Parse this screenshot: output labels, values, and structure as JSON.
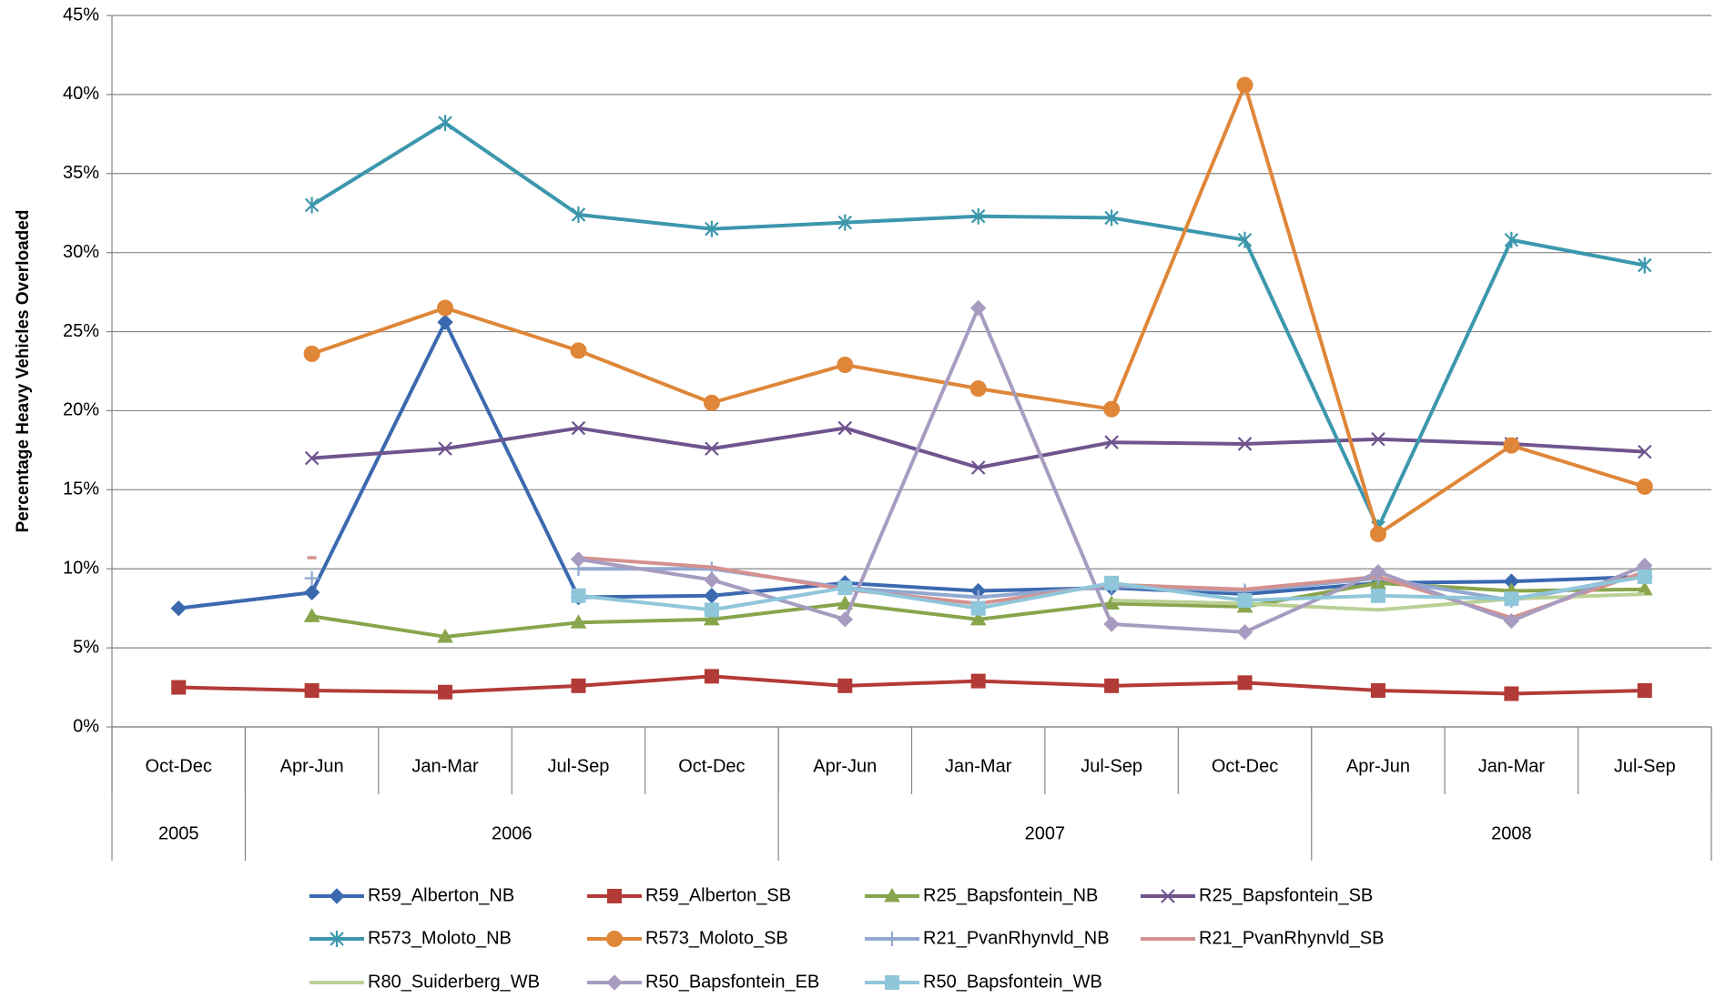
{
  "chart_data": {
    "type": "line",
    "y_label": "Percentage Heavy Vehicles Overloaded",
    "categories": [
      "Oct-Dec",
      "Apr-Jun",
      "Jan-Mar",
      "Jul-Sep",
      "Oct-Dec",
      "Apr-Jun",
      "Jan-Mar",
      "Jul-Sep",
      "Oct-Dec",
      "Apr-Jun",
      "Jan-Mar",
      "Jul-Sep"
    ],
    "year_groups": [
      {
        "label": "2005",
        "count": 1
      },
      {
        "label": "2006",
        "count": 4
      },
      {
        "label": "2007",
        "count": 4
      },
      {
        "label": "2008",
        "count": 3
      }
    ],
    "ylim": [
      0,
      45
    ],
    "yticks": [
      {
        "value": 0,
        "label": "0%"
      },
      {
        "value": 5,
        "label": "5%"
      },
      {
        "value": 10,
        "label": "10%"
      },
      {
        "value": 15,
        "label": "15%"
      },
      {
        "value": 20,
        "label": "20%"
      },
      {
        "value": 25,
        "label": "25%"
      },
      {
        "value": 30,
        "label": "30%"
      },
      {
        "value": 35,
        "label": "35%"
      },
      {
        "value": 40,
        "label": "40%"
      },
      {
        "value": 45,
        "label": "45%"
      }
    ],
    "grid": true,
    "legend": "bottom",
    "series": [
      {
        "name": "R59_Alberton_NB",
        "color": "#3b69b0",
        "marker": "diamond",
        "values": [
          7.5,
          8.5,
          25.6,
          8.2,
          8.3,
          9.1,
          8.6,
          8.8,
          8.4,
          9.1,
          9.2,
          9.5
        ]
      },
      {
        "name": "R59_Alberton_SB",
        "color": "#b33b37",
        "marker": "square",
        "values": [
          2.5,
          2.3,
          2.2,
          2.6,
          3.2,
          2.6,
          2.9,
          2.6,
          2.8,
          2.3,
          2.1,
          2.3
        ]
      },
      {
        "name": "R25_Bapsfontein_NB",
        "color": "#88a54c",
        "marker": "triangle",
        "values": [
          null,
          7.0,
          5.7,
          6.6,
          6.8,
          7.8,
          6.8,
          7.8,
          7.6,
          9.1,
          8.6,
          8.7
        ]
      },
      {
        "name": "R25_Bapsfontein_SB",
        "color": "#6f548e",
        "marker": "x",
        "values": [
          null,
          17.0,
          17.6,
          18.9,
          17.6,
          18.9,
          16.4,
          18.0,
          17.9,
          18.2,
          17.9,
          17.4
        ]
      },
      {
        "name": "R573_Moloto_NB",
        "color": "#3c97ad",
        "marker": "star",
        "values": [
          null,
          33.0,
          38.2,
          32.4,
          31.5,
          31.9,
          32.3,
          32.2,
          30.8,
          12.6,
          30.8,
          29.2
        ]
      },
      {
        "name": "R573_Moloto_SB",
        "color": "#df8639",
        "marker": "circle",
        "values": [
          null,
          23.6,
          26.5,
          23.8,
          20.5,
          22.9,
          21.4,
          20.1,
          40.6,
          12.2,
          17.8,
          15.2
        ]
      },
      {
        "name": "R21_PvanRhynvld_NB",
        "color": "#91a8d0",
        "marker": "plus",
        "values": [
          null,
          9.4,
          null,
          10.0,
          10.0,
          8.8,
          8.2,
          8.9,
          8.6,
          9.4,
          8.0,
          9.6
        ]
      },
      {
        "name": "R21_PvanRhynvld_SB",
        "color": "#d4918f",
        "marker": "dash",
        "values": [
          null,
          10.7,
          null,
          10.7,
          10.1,
          8.7,
          7.8,
          9.0,
          8.7,
          9.5,
          6.9,
          9.8
        ]
      },
      {
        "name": "R80_Suiderberg_WB",
        "color": "#bad096",
        "marker": "none",
        "values": [
          null,
          null,
          null,
          null,
          null,
          null,
          null,
          8.0,
          7.8,
          7.4,
          8.1,
          8.4
        ]
      },
      {
        "name": "R50_Bapsfontein_EB",
        "color": "#a79cc0",
        "marker": "diamond",
        "values": [
          null,
          null,
          null,
          10.6,
          9.3,
          6.8,
          26.5,
          6.5,
          6.0,
          9.8,
          6.7,
          10.2
        ]
      },
      {
        "name": "R50_Bapsfontein_WB",
        "color": "#8fc6da",
        "marker": "square",
        "values": [
          null,
          null,
          null,
          8.3,
          7.4,
          8.8,
          7.5,
          9.1,
          8.0,
          8.3,
          8.1,
          9.5
        ]
      }
    ]
  }
}
